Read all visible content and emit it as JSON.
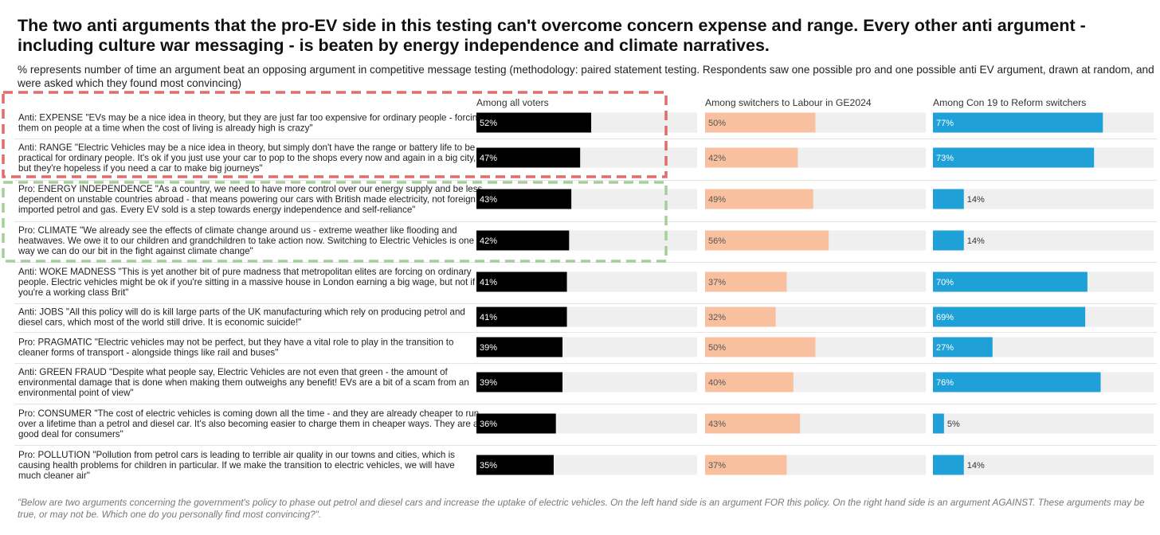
{
  "title": "The two anti arguments that the pro-EV side in this testing can't overcome concern expense and range. Every other anti argument - including culture war messaging - is beaten by energy independence and climate narratives.",
  "subtitle": "% represents number of time an argument beat an opposing argument in competitive message testing (methodology: paired statement testing. Respondents saw one possible pro and one possible anti EV argument, drawn at random, and were asked which they found most convincing)",
  "footnote": "\"Below are two arguments concerning the government's policy to phase out petrol and diesel cars and increase the uptake of electric vehicles. On the left hand side is an argument FOR this policy. On the right hand side is an argument AGAINST. These arguments may be true, or may not be. Which one do you personally find most convincing?\".",
  "colors": {
    "all_voters": "#000000",
    "labour_switchers": "#f9c0a0",
    "reform_switchers": "#1fa0d6",
    "track": "#efefef",
    "highlight_red": "#e06c6c",
    "highlight_green": "#a3cf9b"
  },
  "chart_data": {
    "type": "bar",
    "orientation": "horizontal",
    "title": "The two anti arguments that the pro-EV side in this testing can't overcome concern expense and range. Every other anti argument - including culture war messaging - is beaten by energy independence and climate narratives.",
    "xlim": [
      0,
      100
    ],
    "unit": "%",
    "categories": [
      "Anti: EXPENSE \"EVs may be a nice idea in theory, but they are just far too expensive for ordinary people - forcing them on people at a time when the cost of living is already high is crazy\"",
      "Anti: RANGE \"Electric Vehicles may be a nice idea in theory, but simply don't have the range or battery life to be practical for ordinary people. It's ok if you just use your car to pop to the shops every now and again in a big city, but they're hopeless if you need a car to make big journeys\"",
      "Pro: ENERGY INDEPENDENCE \"As a country, we need to have more control over our energy supply and be less dependent on unstable countries abroad - that means powering our cars with British made electricity, not foreign imported petrol and gas. Every EV sold is a step towards energy independence and self-reliance\"",
      "Pro: CLIMATE \"We already see the effects of climate change around us - extreme weather like flooding and heatwaves. We owe it to our children and grandchildren to take action now. Switching to Electric Vehicles is one way we can do our bit in the fight against climate change\"",
      "Anti: WOKE MADNESS \"This is yet another bit of pure madness that metropolitan elites are forcing on ordinary people. Electric vehicles might be ok if you're sitting in a massive house in London earning a big wage, but not if you're a working class Brit\"",
      "Anti: JOBS \"All this policy will do is kill large parts of the UK manufacturing which rely on producing petrol and diesel cars, which most of the world still drive. It is economic suicide!\"",
      "Pro: PRAGMATIC \"Electric vehicles may not be perfect, but they have a vital role to play in the transition to cleaner forms of transport - alongside things like rail and buses\"",
      "Anti: GREEN FRAUD \"Despite what people say, Electric Vehicles are not even that green - the amount of environmental damage that is done when making them outweighs any benefit! EVs are a bit of a scam from an environmental point of view\"",
      "Pro: CONSUMER \"The cost of electric vehicles is coming down all the time - and they are already cheaper to run over a lifetime than a petrol and diesel car. It's also becoming easier to charge them in cheaper ways. They are a good deal for consumers\"",
      "Pro: POLLUTION \"Pollution from petrol cars is leading to terrible air quality in our towns and cities, which is causing health problems for children in particular. If we make the transition to electric vehicles, we will have much cleaner air\""
    ],
    "label_lines": [
      [
        "Anti: EXPENSE \"EVs may be a nice idea in theory, but they are just far too expensive for ordinary people - forcing",
        "them on people at a time when the cost of living is already high is crazy\""
      ],
      [
        "Anti: RANGE \"Electric Vehicles may be a nice idea in theory, but simply don't have the range or battery life to be",
        "practical for ordinary people. It's ok if you just use your car to pop to the shops every now and again in a big city,",
        "but they're hopeless if you need a car to make big journeys\""
      ],
      [
        "Pro: ENERGY INDEPENDENCE \"As a country, we need to have more control over our energy supply and be less",
        "dependent on unstable countries abroad - that means powering our cars with British made electricity, not foreign",
        "imported petrol and gas. Every EV sold is a step towards energy independence and self-reliance\""
      ],
      [
        "Pro: CLIMATE \"We already see the effects of climate change around us - extreme weather like flooding and",
        "heatwaves. We owe it to our children and grandchildren to take action now. Switching to Electric Vehicles is one",
        "way we can do our bit in the fight against climate change\""
      ],
      [
        "Anti: WOKE MADNESS \"This is yet another bit of pure madness that metropolitan elites are forcing on ordinary",
        "people. Electric vehicles might be ok if you're sitting in a massive house in London earning a big wage, but not if",
        "you're a working class Brit\""
      ],
      [
        "Anti: JOBS \"All this policy will do is kill large parts of the UK manufacturing which rely on producing petrol and",
        "diesel cars, which most of the world still drive. It is economic suicide!\""
      ],
      [
        "Pro: PRAGMATIC \"Electric vehicles may not be perfect, but they have a vital role to play in the transition to",
        "cleaner forms of transport - alongside things like rail and buses\""
      ],
      [
        "Anti: GREEN FRAUD \"Despite what people say, Electric Vehicles are not even that green - the amount of",
        "environmental damage that is done when making them outweighs any benefit! EVs are a bit of a scam from an",
        "environmental point of view\""
      ],
      [
        "Pro: CONSUMER \"The cost of electric vehicles is coming down all the time - and they are already cheaper to run",
        "over a lifetime than a petrol and diesel car. It's also becoming easier to charge them in cheaper ways. They are a",
        "good deal for consumers\""
      ],
      [
        "Pro: POLLUTION \"Pollution from petrol cars is leading to terrible air quality in our towns and cities, which is",
        "causing health problems for children in particular. If we make the transition to electric vehicles, we will have",
        "much cleaner air\""
      ]
    ],
    "series": [
      {
        "name": "Among all voters",
        "values": [
          52,
          47,
          43,
          42,
          41,
          41,
          39,
          39,
          36,
          35
        ]
      },
      {
        "name": "Among switchers to Labour in GE2024",
        "values": [
          50,
          42,
          49,
          56,
          37,
          32,
          50,
          40,
          43,
          37
        ]
      },
      {
        "name": "Among Con 19 to Reform switchers",
        "values": [
          77,
          73,
          14,
          14,
          70,
          69,
          27,
          76,
          5,
          14
        ]
      }
    ],
    "highlights": [
      {
        "style": "dashed-red",
        "rows": [
          0,
          1
        ]
      },
      {
        "style": "dashed-green",
        "rows": [
          2,
          3
        ]
      }
    ],
    "grid": false,
    "legend": "column headers"
  }
}
